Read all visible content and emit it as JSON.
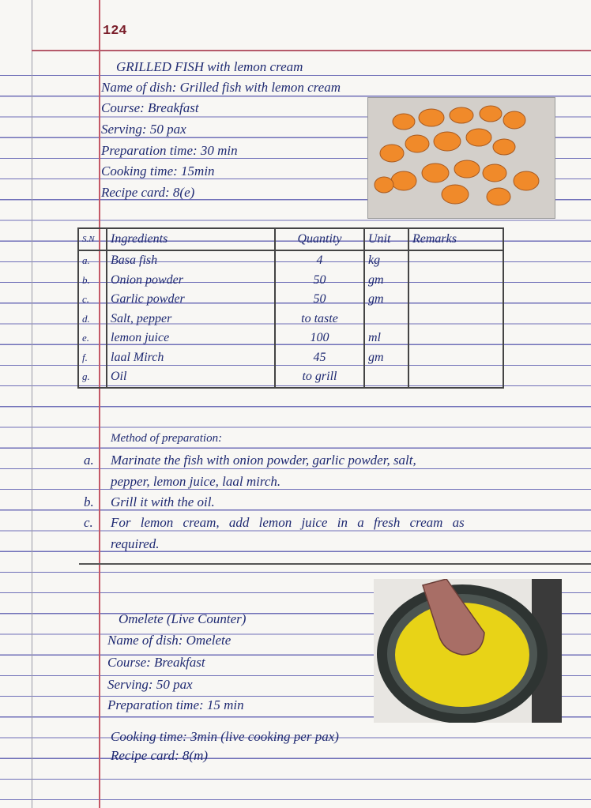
{
  "page_number": "124",
  "recipe1": {
    "heading": "GRILLED FISH with lemon cream",
    "name_of_dish": "Name of dish: Grilled fish with lemon cream",
    "course": "Course: Breakfast",
    "serving": "Serving: 50 pax",
    "preparation_time": "Preparation time: 30 min",
    "cooking_time": "Cooking time: 15min",
    "recipe_card": "Recipe card: 8(e)",
    "table": {
      "headers": [
        "S.N",
        "Ingredients",
        "Quantity",
        "Unit",
        "Remarks"
      ],
      "rows": [
        [
          "a.",
          "Basa fish",
          "4",
          "kg",
          ""
        ],
        [
          "b.",
          "Onion powder",
          "50",
          "gm",
          ""
        ],
        [
          "c.",
          "Garlic powder",
          "50",
          "gm",
          ""
        ],
        [
          "d.",
          "Salt, pepper",
          "to taste",
          "",
          ""
        ],
        [
          "e.",
          "lemon juice",
          "100",
          "ml",
          ""
        ],
        [
          "f.",
          "laal Mirch",
          "45",
          "gm",
          ""
        ],
        [
          "g.",
          "Oil",
          "to grill",
          "",
          ""
        ]
      ]
    },
    "method_heading": "Method of preparation:",
    "method": [
      {
        "label": "a.",
        "lines": [
          "Marinate the fish with onion powder, garlic powder, salt,",
          "pepper, lemon juice, laal mirch."
        ]
      },
      {
        "label": "b.",
        "lines": [
          "Grill it with the oil."
        ]
      },
      {
        "label": "c.",
        "lines": [
          "For lemon cream, add lemon juice in a fresh cream as",
          "required."
        ]
      }
    ]
  },
  "recipe2": {
    "heading": "Omelete (Live Counter)",
    "name_of_dish": "Name of dish: Omelete",
    "course": "Course: Breakfast",
    "serving": "Serving: 50 pax",
    "preparation_time": "Preparation time: 15 min",
    "cooking_time": "Cooking time: 3min (live cooking per pax)",
    "recipe_card": "Recipe card: 8(m)"
  },
  "colors": {
    "ink": "#1f2a72",
    "margin_line": "#c45866",
    "ruled_line": "#6f6fb8"
  }
}
